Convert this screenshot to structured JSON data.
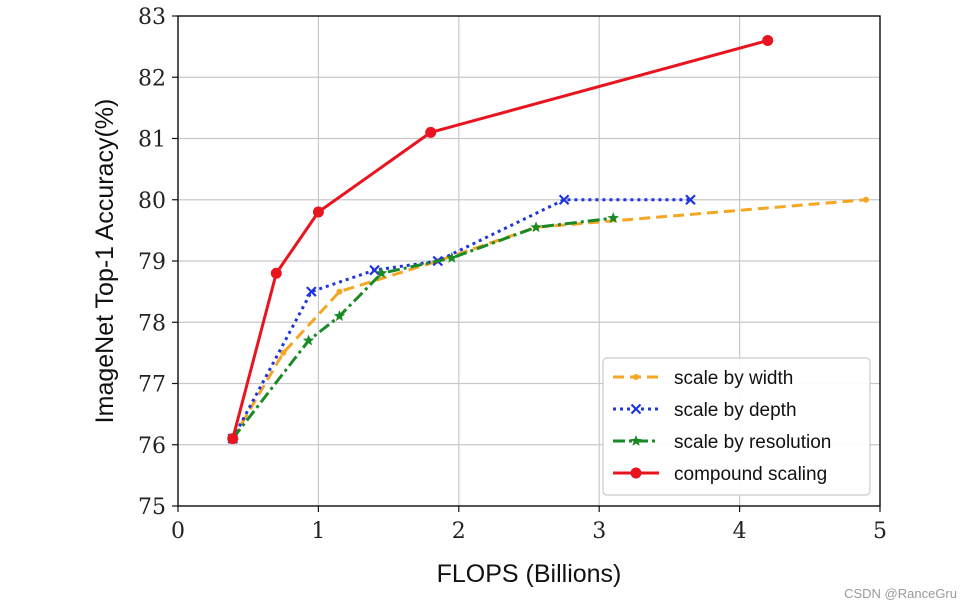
{
  "chart_data": {
    "type": "line",
    "xlabel": "FLOPS (Billions)",
    "ylabel": "ImageNet Top-1 Accuracy(%)",
    "xlim": [
      0,
      5
    ],
    "ylim": [
      75,
      83
    ],
    "xticks": [
      0,
      1,
      2,
      3,
      4,
      5
    ],
    "yticks": [
      75,
      76,
      77,
      78,
      79,
      80,
      81,
      82,
      83
    ],
    "grid": true,
    "legend_position": "lower-right",
    "series": [
      {
        "name": "scale by width",
        "color": "#f5a623",
        "line_style": "dashed",
        "marker": "dot",
        "x": [
          0.39,
          0.75,
          1.15,
          1.85,
          2.55,
          4.9
        ],
        "y": [
          76.1,
          77.5,
          78.5,
          79.0,
          79.55,
          80.0
        ]
      },
      {
        "name": "scale by depth",
        "color": "#1f35e0",
        "line_style": "dotted",
        "marker": "x",
        "x": [
          0.39,
          0.95,
          1.4,
          1.85,
          2.75,
          3.65
        ],
        "y": [
          76.1,
          78.5,
          78.85,
          79.0,
          80.0,
          80.0
        ]
      },
      {
        "name": "scale by resolution",
        "color": "#1a8a26",
        "line_style": "dashdot",
        "marker": "star",
        "x": [
          0.39,
          0.93,
          1.15,
          1.45,
          1.95,
          2.55,
          3.1
        ],
        "y": [
          76.1,
          77.7,
          78.1,
          78.8,
          79.05,
          79.55,
          79.7
        ]
      },
      {
        "name": "compound scaling",
        "color": "#e8141f",
        "line_style": "solid",
        "marker": "circle",
        "x": [
          0.39,
          0.7,
          1.0,
          1.8,
          4.2
        ],
        "y": [
          76.1,
          78.8,
          79.8,
          81.1,
          82.6
        ]
      }
    ]
  },
  "watermark": "CSDN @RanceGru"
}
